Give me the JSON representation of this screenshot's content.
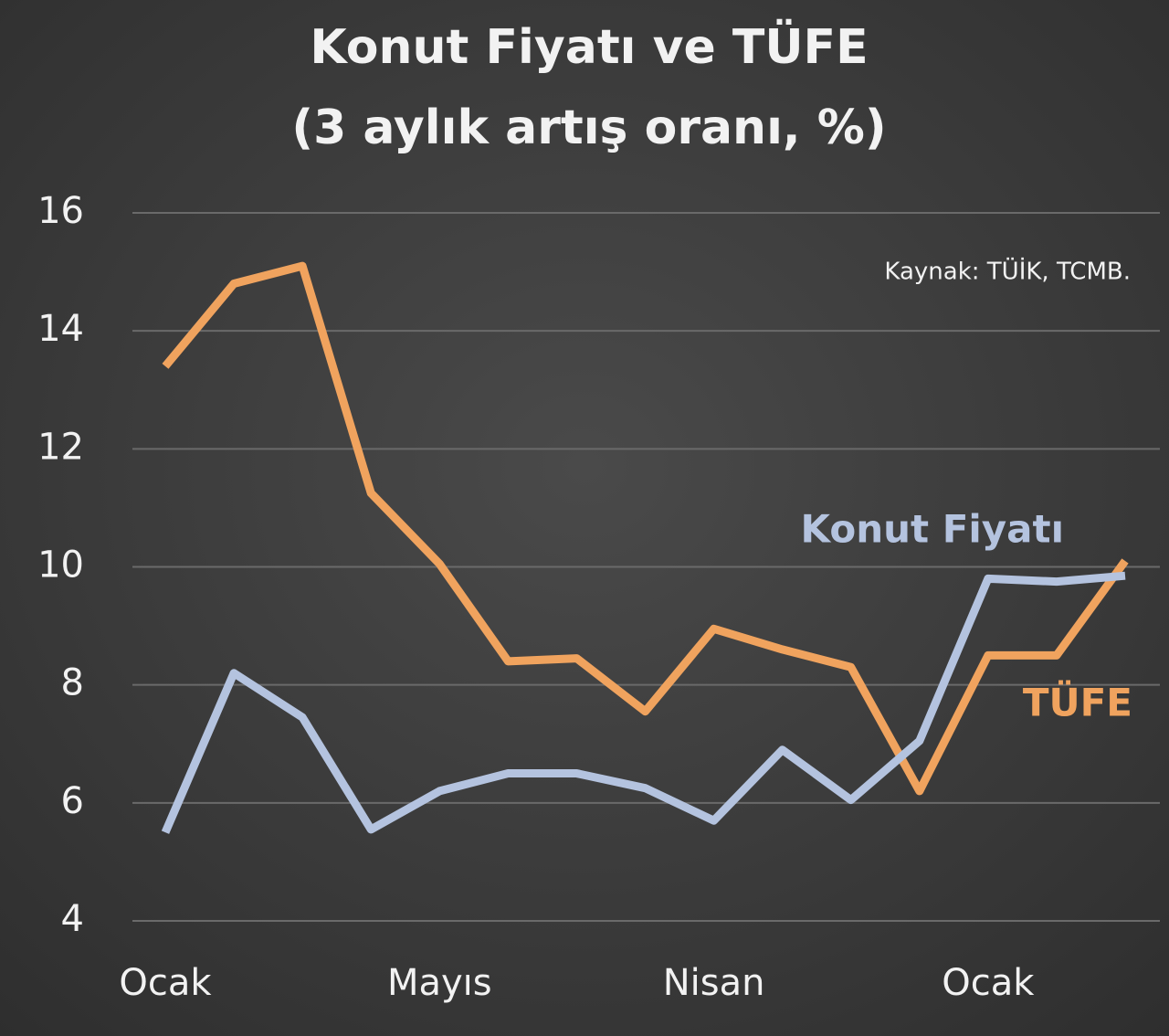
{
  "chart_data": {
    "type": "line",
    "title": "Konut Fiyatı ve TÜFE",
    "subtitle": "(3 aylık artış oranı, %)",
    "annotation": "Kaynak: TÜİK, TCMB.",
    "categories": [
      "Ocak",
      null,
      null,
      null,
      "Mayıs",
      null,
      null,
      null,
      "Nisan",
      null,
      null,
      null,
      "Ocak",
      null,
      null
    ],
    "series": [
      {
        "name": "TÜFE",
        "color": "#f0a35e",
        "values": [
          13.4,
          14.8,
          15.1,
          11.25,
          10.05,
          8.4,
          8.45,
          7.55,
          8.95,
          8.6,
          8.3,
          6.2,
          8.5,
          8.5,
          10.1
        ]
      },
      {
        "name": "Konut Fiyatı",
        "color": "#b4c3df",
        "values": [
          5.5,
          8.2,
          7.45,
          5.55,
          6.2,
          6.5,
          6.5,
          6.25,
          5.7,
          6.9,
          6.05,
          7.05,
          9.8,
          9.75,
          9.85
        ]
      }
    ],
    "ylim": [
      4,
      16
    ],
    "yticks": [
      4,
      6,
      8,
      10,
      12,
      14,
      16
    ],
    "grid": true
  }
}
